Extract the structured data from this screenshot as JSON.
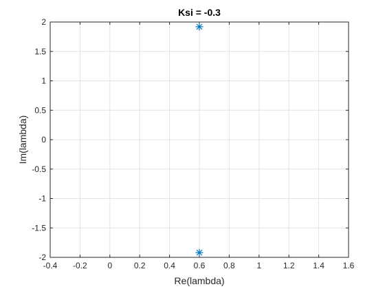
{
  "chart_data": {
    "type": "scatter",
    "title": "Ksi = -0.3",
    "xlabel": "Re(lambda)",
    "ylabel": "Im(lambda)",
    "xlim": [
      -0.4,
      1.6
    ],
    "ylim": [
      -2,
      2
    ],
    "xticks": [
      -0.4,
      -0.2,
      0,
      0.2,
      0.4,
      0.6,
      0.8,
      1,
      1.2,
      1.4,
      1.6
    ],
    "xtick_labels": [
      "-0.4",
      "-0.2",
      "0",
      "0.2",
      "0.4",
      "0.6",
      "0.8",
      "1",
      "1.2",
      "1.4",
      "1.6"
    ],
    "yticks": [
      -2,
      -1.5,
      -1,
      -0.5,
      0,
      0.5,
      1,
      1.5,
      2
    ],
    "ytick_labels": [
      "-2",
      "-1.5",
      "-1",
      "-0.5",
      "0",
      "0.5",
      "1",
      "1.5",
      "2"
    ],
    "grid": true,
    "marker": "asterisk",
    "series": [
      {
        "color": "#0072bd",
        "points": [
          {
            "x": 0.6,
            "y": 1.92
          },
          {
            "x": 0.6,
            "y": -1.92
          }
        ]
      }
    ]
  }
}
